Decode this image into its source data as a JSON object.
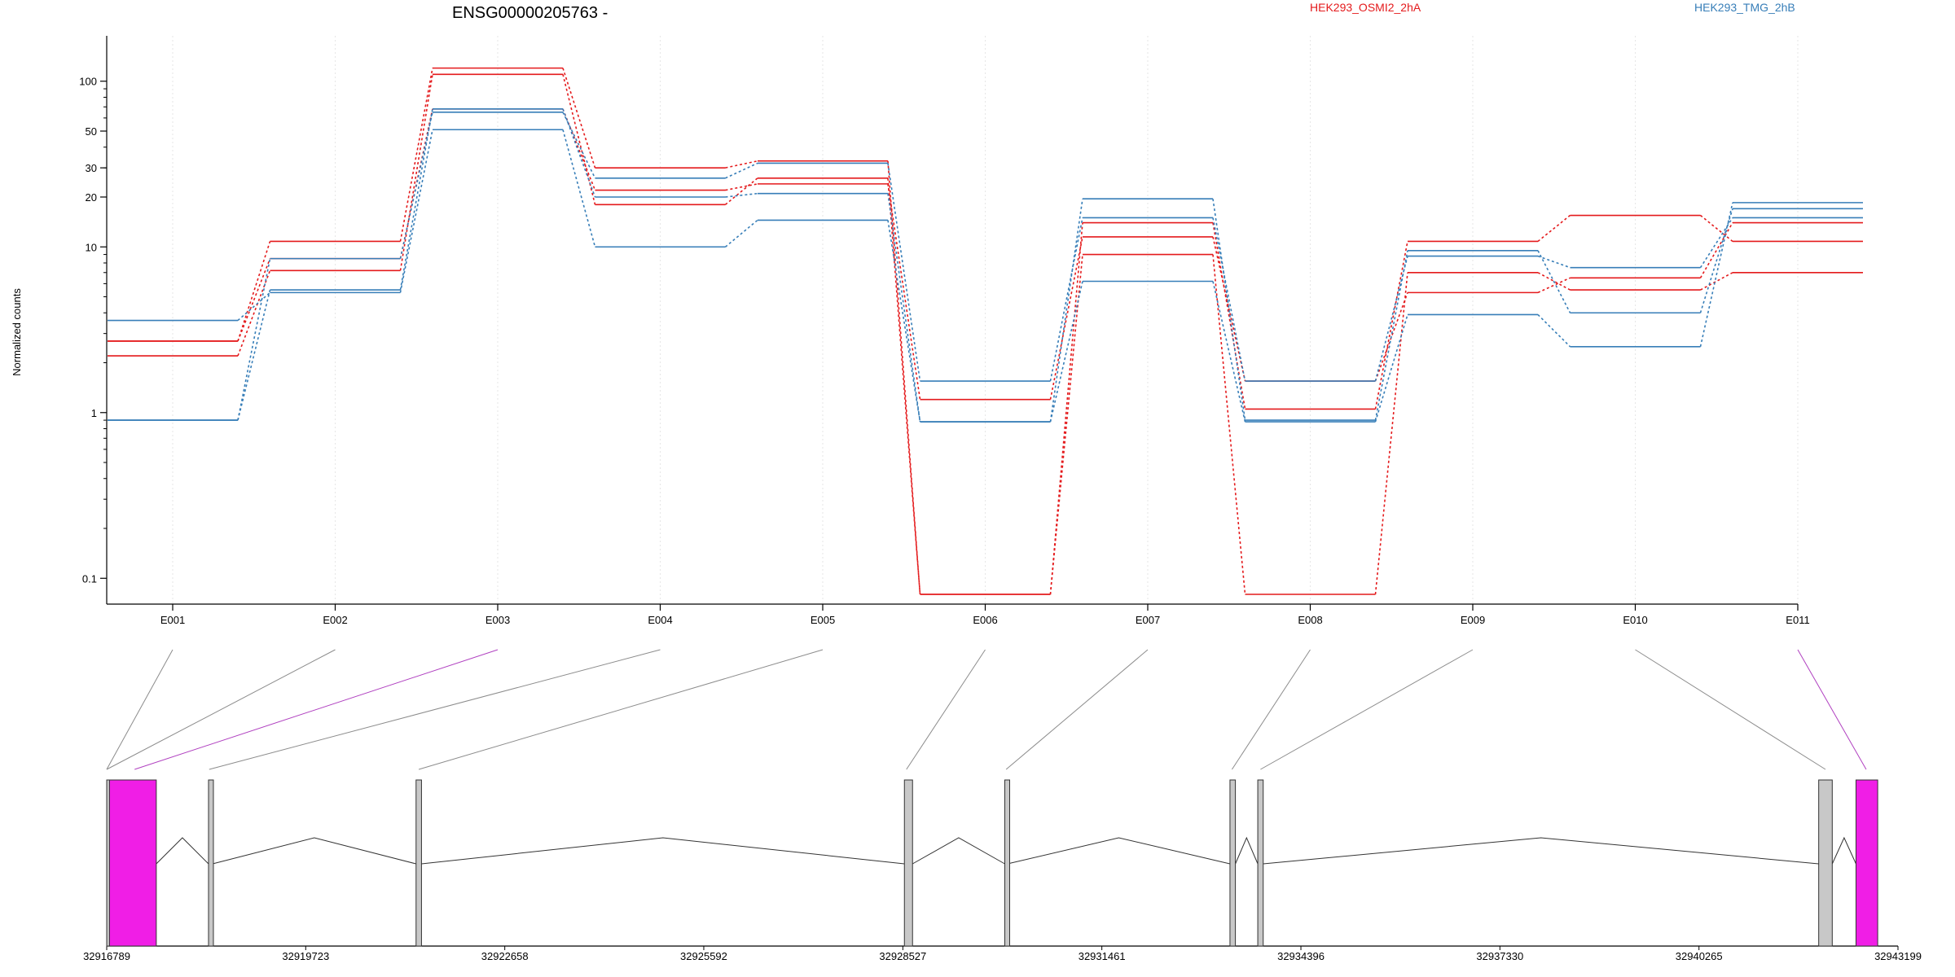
{
  "chart_data": {
    "type": "line",
    "title": "ENSG00000205763 -",
    "xlabel": "",
    "ylabel": "Normalized counts",
    "y_scale": "log",
    "ylim": [
      0.08,
      140
    ],
    "y_ticks": [
      "0.1",
      "1",
      "10",
      "20",
      "30",
      "50",
      "100"
    ],
    "y_tick_values": [
      0.1,
      1,
      10,
      20,
      30,
      50,
      100
    ],
    "categories": [
      "E001",
      "E002",
      "E003",
      "E004",
      "E005",
      "E006",
      "E007",
      "E008",
      "E009",
      "E010",
      "E011"
    ],
    "grid": true,
    "legend_placement": "top",
    "series": [
      {
        "name": "HEK293_OSMI2_2hA",
        "color": "#e41a1c",
        "values": [
          2.7,
          10.8,
          120,
          30,
          33,
          0.08,
          14,
          1.05,
          10.8,
          15.5,
          10.8
        ]
      },
      {
        "name": "",
        "color": "#e41a1c",
        "values": [
          2.2,
          7.2,
          110,
          18,
          26,
          0.08,
          9,
          0.08,
          7,
          5.5,
          7
        ]
      },
      {
        "name": "",
        "color": "#e41a1c",
        "values": [
          2.7,
          8.5,
          68,
          22,
          24,
          1.2,
          11.5,
          1.55,
          5.3,
          6.5,
          14
        ]
      },
      {
        "name": "HEK293_TMG_2hB",
        "color": "#377eb8",
        "values": [
          3.6,
          5.3,
          51,
          10,
          14.5,
          0.88,
          6.2,
          0.88,
          3.9,
          2.5,
          18.5
        ]
      },
      {
        "name": "",
        "color": "#377eb8",
        "values": [
          0.9,
          5.5,
          68,
          20,
          21,
          0.88,
          19.5,
          0.9,
          9.5,
          4,
          17
        ]
      },
      {
        "name": "",
        "color": "#377eb8",
        "values": [
          0.9,
          8.5,
          65,
          26,
          32,
          1.55,
          15,
          1.55,
          8.8,
          7.5,
          15
        ]
      }
    ],
    "legend": [
      "HEK293_OSMI2_2hA",
      "HEK293_TMG_2hB"
    ],
    "gene_model": {
      "genomic_ticks": [
        "32916789",
        "32919723",
        "32922658",
        "32925592",
        "32928527",
        "32931461",
        "32934396",
        "32937330",
        "32940265",
        "32943199"
      ],
      "genomic_tick_values": [
        32916789,
        32919723,
        32922658,
        32925592,
        32928527,
        32931461,
        32934396,
        32937330,
        32940265,
        32943199
      ],
      "exon_color": "#c8c8c8",
      "highlight_color": "#f01ee6",
      "exons": [
        {
          "start": 32916789,
          "end": 32916830,
          "highlight": false
        },
        {
          "start": 32916830,
          "end": 32917520,
          "highlight": true
        },
        {
          "start": 32918290,
          "end": 32918350,
          "highlight": false
        },
        {
          "start": 32921350,
          "end": 32921430,
          "highlight": false
        },
        {
          "start": 32928550,
          "end": 32928670,
          "highlight": false
        },
        {
          "start": 32930030,
          "end": 32930070,
          "highlight": false
        },
        {
          "start": 32933350,
          "end": 32933430,
          "highlight": false
        },
        {
          "start": 32933760,
          "end": 32933840,
          "highlight": false
        },
        {
          "start": 32942030,
          "end": 32942230,
          "highlight": false
        },
        {
          "start": 32942580,
          "end": 32942900,
          "highlight": true
        }
      ],
      "exon_bin_links": [
        {
          "bin": "E001",
          "genomic_position": 32916789,
          "highlight": false
        },
        {
          "bin": "E002",
          "genomic_position": 32916789,
          "highlight": false
        },
        {
          "bin": "E003",
          "genomic_position": 32917200,
          "highlight": true
        },
        {
          "bin": "E004",
          "genomic_position": 32918300,
          "highlight": false
        },
        {
          "bin": "E005",
          "genomic_position": 32921390,
          "highlight": false
        },
        {
          "bin": "E006",
          "genomic_position": 32928580,
          "highlight": false
        },
        {
          "bin": "E007",
          "genomic_position": 32930050,
          "highlight": false
        },
        {
          "bin": "E008",
          "genomic_position": 32933380,
          "highlight": false
        },
        {
          "bin": "E009",
          "genomic_position": 32933800,
          "highlight": false
        },
        {
          "bin": "E010",
          "genomic_position": 32942130,
          "highlight": false
        },
        {
          "bin": "E011",
          "genomic_position": 32942730,
          "highlight": true
        }
      ]
    }
  }
}
